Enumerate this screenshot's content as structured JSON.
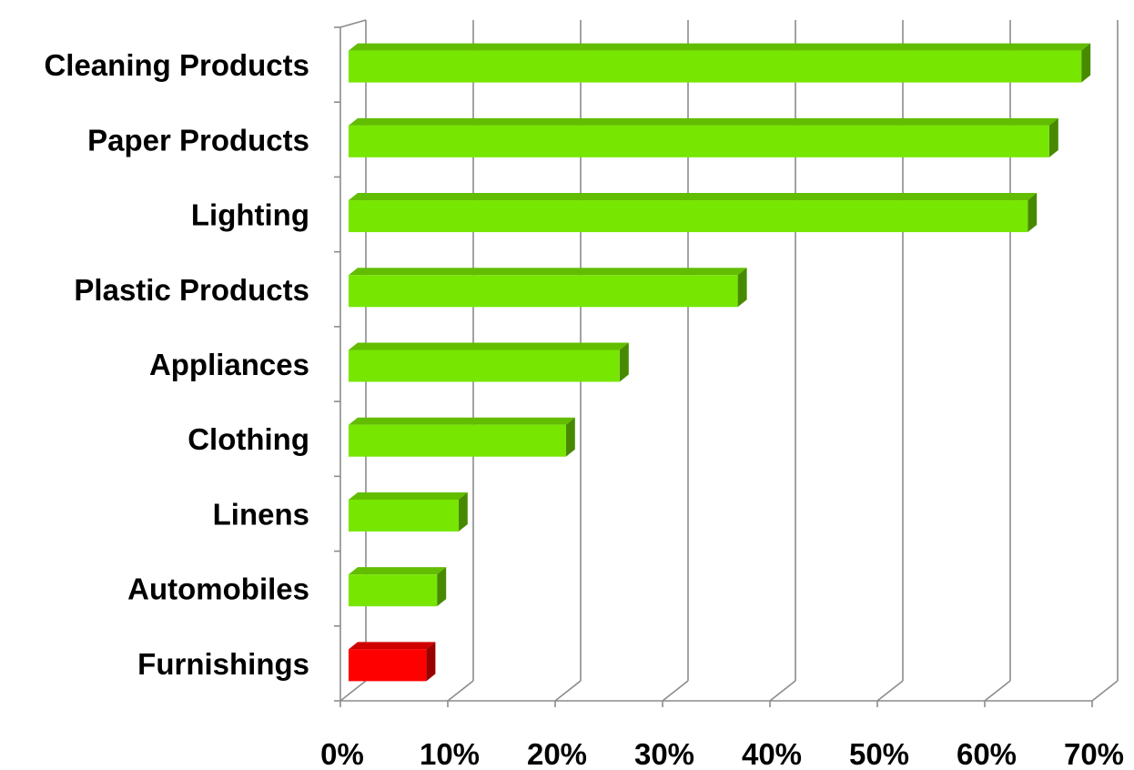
{
  "chart_data": {
    "type": "bar",
    "orientation": "horizontal",
    "style": "3d",
    "categories": [
      "Cleaning Products",
      "Paper Products",
      "Lighting",
      "Plastic Products",
      "Appliances",
      "Clothing",
      "Linens",
      "Automobiles",
      "Furnishings"
    ],
    "values": [
      69,
      66,
      64,
      37,
      26,
      21,
      11,
      9,
      8
    ],
    "colors": [
      "#77e600",
      "#77e600",
      "#77e600",
      "#77e600",
      "#77e600",
      "#77e600",
      "#77e600",
      "#77e600",
      "#ff0000"
    ],
    "xlim": [
      0,
      70
    ],
    "ticks": [
      0,
      10,
      20,
      30,
      40,
      50,
      60,
      70
    ],
    "tick_labels": [
      "0%",
      "10%",
      "20%",
      "30%",
      "40%",
      "50%",
      "60%",
      "70%"
    ],
    "grid": true,
    "title": "",
    "xlabel": "",
    "ylabel": ""
  }
}
